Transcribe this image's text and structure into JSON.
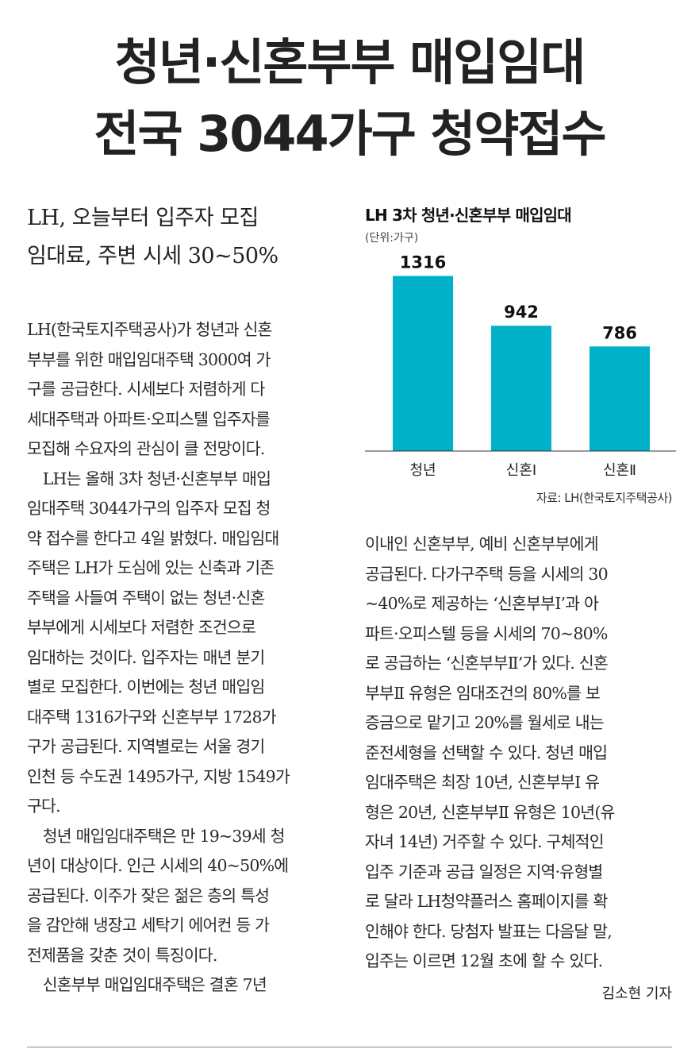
{
  "headline": {
    "line1": "청년·신혼부부 매입임대",
    "line2": "전국 3044가구 청약접수"
  },
  "subhead": {
    "line1": "LH, 오늘부터 입주자 모집",
    "line2": "임대료, 주변 시세 30~50%"
  },
  "body_left": [
    "LH(한국토지주택공사)가 청년과 신혼",
    "부부를 위한 매입임대주택 3000여 가",
    "구를 공급한다. 시세보다 저렴하게 다",
    "세대주택과 아파트·오피스텔 입주자를",
    "모집해 수요자의 관심이 클 전망이다.",
    "　LH는 올해 3차 청년·신혼부부 매입",
    "임대주택 3044가구의 입주자 모집 청",
    "약 접수를 한다고 4일 밝혔다. 매입임대",
    "주택은 LH가 도심에 있는 신축과 기존",
    "주택을 사들여 주택이 없는 청년·신혼",
    "부부에게 시세보다 저렴한 조건으로",
    "임대하는 것이다. 입주자는 매년 분기",
    "별로 모집한다. 이번에는 청년 매입임",
    "대주택 1316가구와 신혼부부 1728가",
    "구가 공급된다. 지역별로는 서울 경기",
    "인천 등 수도권 1495가구, 지방 1549가",
    "구다.",
    "　청년 매입임대주택은 만 19~39세 청",
    "년이 대상이다. 인근 시세의 40~50%에",
    "공급된다. 이주가 잦은 젊은 층의 특성",
    "을 감안해 냉장고 세탁기 에어컨 등 가",
    "전제품을 갖춘 것이 특징이다.",
    "　신혼부부 매입임대주택은 결혼 7년"
  ],
  "body_right": [
    "이내인 신혼부부, 예비 신혼부부에게",
    "공급된다. 다가구주택 등을 시세의 30",
    "~40%로 제공하는 ‘신혼부부Ⅰ’과 아",
    "파트·오피스텔 등을 시세의 70~80%",
    "로 공급하는 ‘신혼부부Ⅱ’가 있다. 신혼",
    "부부Ⅱ 유형은 임대조건의 80%를 보",
    "증금으로 맡기고 20%를 월세로 내는",
    "준전세형을 선택할 수 있다. 청년 매입",
    "임대주택은 최장 10년, 신혼부부Ⅰ 유",
    "형은 20년, 신혼부부Ⅱ 유형은 10년(유",
    "자녀 14년) 거주할 수 있다. 구체적인",
    "입주 기준과 공급 일정은 지역·유형별",
    "로 달라 LH청약플러스 홈페이지를 확",
    "인해야 한다. 당첨자 발표는 다음달 말,",
    "입주는 이르면 12월 초에 할 수 있다."
  ],
  "byline": "김소현 기자",
  "chart_data": {
    "type": "bar",
    "title": "LH 3차 청년·신혼부부 매입임대",
    "unit": "(단위:가구)",
    "source": "자료: LH(한국토지주택공사)",
    "categories": [
      "청년",
      "신혼Ⅰ",
      "신혼Ⅱ"
    ],
    "values": [
      1316,
      942,
      786
    ],
    "ylim": [
      0,
      1480
    ],
    "grid": false,
    "bar_color": "#00b2c9"
  }
}
